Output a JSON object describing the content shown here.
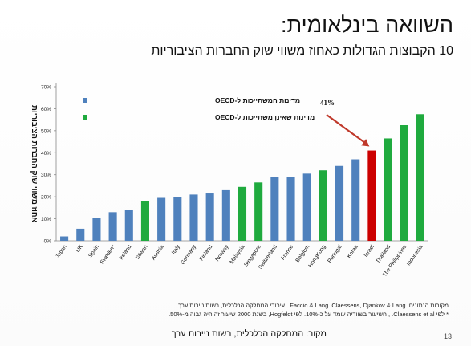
{
  "slide": {
    "title": "השוואה בינלאומית:",
    "subtitle": "10 הקבוצות הגדולות כאחוז משווי שוק החברות הציבוריות",
    "footnote_line1": "מקורות הנתונים: Faccio & Lang ,Claessens, Djankov & Lang . עיבודי המחלקה הכלכלית, רשות ניירות ערך",
    "footnote_line2": "* לפי Claessens et al. , חשיעור בשוודיה עומד על כ-10%. לפי Hogfeldt, בשנת 2000 שיעור זה היה גבוה מ-50%.",
    "source": "מקור: המחלקה הכלכלית, רשות ניירות ערך",
    "page_number": "13"
  },
  "colors": {
    "oecd": "#4F81BD",
    "non_oecd": "#1FAA3E",
    "israel": "#CC0000",
    "arrow": "#C0392B"
  },
  "chart_data": {
    "type": "bar",
    "ylabel": "אחוז משווי שוק החברות הציבוריות",
    "ylim": [
      0,
      70
    ],
    "yticks": [
      "0%",
      "10%",
      "20%",
      "30%",
      "40%",
      "50%",
      "60%",
      "70%"
    ],
    "legend": [
      {
        "label": "מדינות המשתייכות ל-OECD",
        "group": "oecd"
      },
      {
        "label": "מדינות שאינן משתייכות ל-OECD",
        "group": "non_oecd"
      }
    ],
    "annotation": {
      "text": "41%",
      "target": "Israel"
    },
    "categories": [
      "Japan",
      "UK",
      "Spain",
      "Sweden*",
      "Ireland",
      "Taiwan",
      "Austria",
      "Italy",
      "Germany",
      "Finland",
      "Norway",
      "Malaysia",
      "Singapore",
      "Switzerland",
      "France",
      "Belgium",
      "HongKong",
      "Portugal",
      "Korea",
      "Israel",
      "Thailand",
      "The Philippines",
      "Indonesia"
    ],
    "values": [
      2,
      5.5,
      10.5,
      13,
      14,
      18,
      19.5,
      20,
      21,
      21.5,
      23,
      24.5,
      26.5,
      29,
      29,
      30.5,
      32,
      34,
      37,
      41,
      46.5,
      52.5,
      57.5
    ],
    "groups": [
      "oecd",
      "oecd",
      "oecd",
      "oecd",
      "oecd",
      "non_oecd",
      "oecd",
      "oecd",
      "oecd",
      "oecd",
      "oecd",
      "non_oecd",
      "non_oecd",
      "oecd",
      "oecd",
      "oecd",
      "non_oecd",
      "oecd",
      "oecd",
      "israel",
      "non_oecd",
      "non_oecd",
      "non_oecd"
    ]
  }
}
